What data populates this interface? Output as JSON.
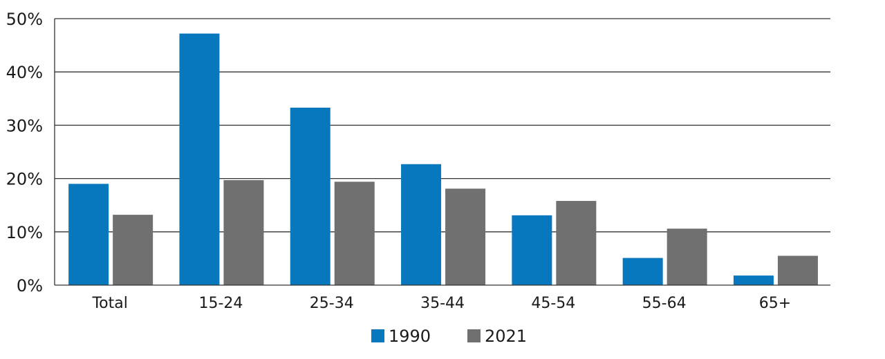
{
  "chart_data": {
    "type": "bar",
    "categories": [
      "Total",
      "15-24",
      "25-34",
      "35-44",
      "45-54",
      "55-64",
      "65+"
    ],
    "series": [
      {
        "name": "1990",
        "color": "#0878BE",
        "values": [
          19,
          47.2,
          33.3,
          22.7,
          13.1,
          5.1,
          1.8
        ]
      },
      {
        "name": "2021",
        "color": "#707070",
        "values": [
          13.2,
          19.7,
          19.4,
          18.1,
          15.8,
          10.6,
          5.5
        ]
      }
    ],
    "ylim": [
      0,
      50
    ],
    "yticks": [
      0,
      10,
      20,
      30,
      40,
      50
    ],
    "ytick_labels": [
      "0%",
      "10%",
      "20%",
      "30%",
      "40%",
      "50%"
    ],
    "grid": true,
    "legend_placement": "bottom-center"
  }
}
